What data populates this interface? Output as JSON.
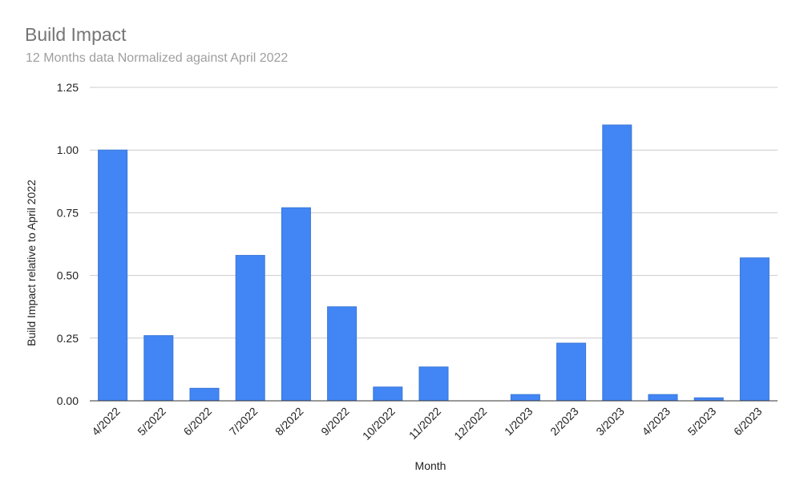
{
  "chart_data": {
    "type": "bar",
    "title": "Build Impact",
    "subtitle": "12 Months data Normalized against April 2022",
    "xlabel": "Month",
    "ylabel": "Build Impact relative to April 2022",
    "ylim": [
      0,
      1.25
    ],
    "yticks": [
      "0.00",
      "0.25",
      "0.50",
      "0.75",
      "1.00",
      "1.25"
    ],
    "ytick_values": [
      0,
      0.25,
      0.5,
      0.75,
      1.0,
      1.25
    ],
    "grid": true,
    "legend": "none",
    "categories": [
      "4/2022",
      "5/2022",
      "6/2022",
      "7/2022",
      "8/2022",
      "9/2022",
      "10/2022",
      "11/2022",
      "12/2022",
      "1/2023",
      "2/2023",
      "3/2023",
      "4/2023",
      "5/2023",
      "6/2023"
    ],
    "values": [
      1.0,
      0.26,
      0.05,
      0.58,
      0.77,
      0.375,
      0.055,
      0.135,
      0.0,
      0.025,
      0.23,
      1.1,
      0.025,
      0.012,
      0.57
    ],
    "colors": {
      "bar": "#4285f4",
      "bar_edge": "#3c78d8",
      "grid": "#cccccc",
      "axis": "#333333",
      "tick_text": "#222222",
      "title": "#757575",
      "subtitle": "#9e9e9e"
    }
  }
}
